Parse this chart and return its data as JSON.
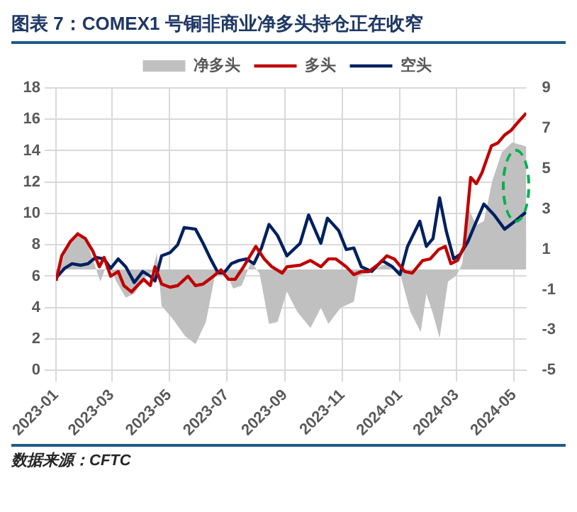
{
  "chart_data": {
    "type": "line",
    "title": "图表 7：COMEX1 号铜非商业净多头持仓正在收窄",
    "annotations": [
      "数据来源：CFTC"
    ],
    "xlim": [
      "2023-01-01",
      "2024-05-14"
    ],
    "xticks": [
      "2023-01",
      "2023-03",
      "2023-05",
      "2023-07",
      "2023-09",
      "2023-11",
      "2024-01",
      "2024-03",
      "2024-05"
    ],
    "ylim": [
      0,
      18
    ],
    "yticks": [
      0,
      2,
      4,
      6,
      8,
      10,
      12,
      14,
      16,
      18
    ],
    "y2lim": [
      -5,
      9
    ],
    "y2ticks": [
      -5,
      -3,
      -1,
      1,
      3,
      5,
      7,
      9
    ],
    "grid": true,
    "legend": "top",
    "marker": "none",
    "line_style": "solid",
    "series": [
      {
        "name": "净多头",
        "type": "area",
        "axis": "y2",
        "color": "#c0c0c0",
        "x": [
          "2023-01-01",
          "2023-01-13",
          "2023-01-24",
          "2023-02-04",
          "2023-02-17",
          "2023-02-25",
          "2023-03-06",
          "2023-03-16",
          "2023-03-25",
          "2023-04-04",
          "2023-04-13",
          "2023-04-18",
          "2023-04-23",
          "2023-05-04",
          "2023-05-18",
          "2023-05-29",
          "2023-06-09",
          "2023-06-19",
          "2023-06-30",
          "2023-07-08",
          "2023-07-17",
          "2023-07-27",
          "2023-08-05",
          "2023-08-15",
          "2023-08-24",
          "2023-09-03",
          "2023-09-14",
          "2023-09-28",
          "2023-10-09",
          "2023-10-17",
          "2023-10-30",
          "2023-11-13",
          "2023-11-18",
          "2023-11-29",
          "2023-12-13",
          "2023-12-21",
          "2024-01-01",
          "2024-01-12",
          "2024-01-23",
          "2024-01-29",
          "2024-02-05",
          "2024-02-12",
          "2024-02-21",
          "2024-03-01",
          "2024-03-07",
          "2024-03-14",
          "2024-03-22",
          "2024-03-30",
          "2024-04-08",
          "2024-04-18",
          "2024-04-29",
          "2024-05-14"
        ],
        "values": [
          -0.45,
          1.2,
          1.9,
          1.2,
          -0.6,
          0.4,
          -0.6,
          -1.4,
          -1.2,
          -0.45,
          -0.1,
          0.8,
          -1.8,
          -2.4,
          -3.3,
          -3.7,
          -2.6,
          -0.2,
          -0.1,
          -0.95,
          -0.8,
          0.4,
          -0.2,
          -2.7,
          -2.6,
          -1.1,
          -2.1,
          -2.9,
          -1.9,
          -2.7,
          -1.9,
          -1.6,
          -0.3,
          -0.2,
          0.2,
          0.3,
          -0.2,
          -2.1,
          -3.1,
          -1.2,
          -2.2,
          -3.4,
          -0.6,
          -0.3,
          0.3,
          3.0,
          2.2,
          2.4,
          4.4,
          5.8,
          6.3,
          6.1
        ]
      },
      {
        "name": "多头",
        "axis": "y",
        "color": "#c00000",
        "x": [
          "2023-01-01",
          "2023-01-07",
          "2023-01-16",
          "2023-01-24",
          "2023-02-01",
          "2023-02-09",
          "2023-02-16",
          "2023-02-21",
          "2023-02-28",
          "2023-03-08",
          "2023-03-14",
          "2023-03-22",
          "2023-03-30",
          "2023-04-04",
          "2023-04-11",
          "2023-04-16",
          "2023-04-23",
          "2023-05-02",
          "2023-05-10",
          "2023-05-21",
          "2023-05-29",
          "2023-06-06",
          "2023-06-17",
          "2023-06-25",
          "2023-07-03",
          "2023-07-10",
          "2023-07-19",
          "2023-08-01",
          "2023-08-10",
          "2023-08-18",
          "2023-08-29",
          "2023-09-03",
          "2023-09-17",
          "2023-09-28",
          "2023-10-09",
          "2023-10-17",
          "2023-10-25",
          "2023-11-05",
          "2023-11-13",
          "2023-11-21",
          "2023-11-29",
          "2023-12-10",
          "2023-12-18",
          "2023-12-26",
          "2024-01-06",
          "2024-01-14",
          "2024-01-25",
          "2024-02-02",
          "2024-02-11",
          "2024-02-18",
          "2024-02-24",
          "2024-03-02",
          "2024-03-09",
          "2024-03-16",
          "2024-03-22",
          "2024-03-28",
          "2024-04-07",
          "2024-04-14",
          "2024-04-21",
          "2024-04-28",
          "2024-05-05",
          "2024-05-14"
        ],
        "values": [
          5.7,
          7.3,
          8.2,
          8.7,
          8.4,
          7.6,
          6.6,
          7.2,
          6.0,
          6.3,
          5.4,
          5.0,
          5.5,
          5.8,
          5.4,
          6.6,
          5.5,
          5.3,
          5.4,
          6.0,
          5.4,
          5.5,
          6.0,
          6.4,
          5.8,
          5.8,
          6.6,
          7.9,
          7.1,
          6.6,
          6.2,
          6.6,
          6.7,
          7.0,
          6.6,
          7.1,
          7.1,
          6.6,
          6.1,
          6.3,
          6.3,
          6.8,
          7.3,
          7.1,
          6.3,
          6.2,
          7.0,
          7.1,
          7.7,
          7.9,
          6.8,
          7.0,
          7.9,
          12.3,
          11.9,
          12.6,
          14.3,
          14.5,
          15.0,
          15.3,
          15.8,
          16.4
        ]
      },
      {
        "name": "空头",
        "axis": "y",
        "color": "#002060",
        "x": [
          "2023-01-01",
          "2023-01-10",
          "2023-01-18",
          "2023-01-27",
          "2023-02-04",
          "2023-02-12",
          "2023-02-21",
          "2023-02-28",
          "2023-03-08",
          "2023-03-16",
          "2023-03-25",
          "2023-04-03",
          "2023-04-11",
          "2023-04-16",
          "2023-04-23",
          "2023-05-02",
          "2023-05-10",
          "2023-05-17",
          "2023-05-29",
          "2023-06-06",
          "2023-06-14",
          "2023-06-22",
          "2023-06-28",
          "2023-07-06",
          "2023-07-14",
          "2023-07-22",
          "2023-07-30",
          "2023-08-07",
          "2023-08-15",
          "2023-08-24",
          "2023-09-03",
          "2023-09-17",
          "2023-09-26",
          "2023-10-09",
          "2023-10-16",
          "2023-10-28",
          "2023-11-05",
          "2023-11-13",
          "2023-11-21",
          "2023-12-02",
          "2023-12-13",
          "2023-12-24",
          "2024-01-01",
          "2024-01-09",
          "2024-01-22",
          "2024-01-29",
          "2024-02-05",
          "2024-02-12",
          "2024-02-19",
          "2024-02-27",
          "2024-03-05",
          "2024-03-13",
          "2024-03-20",
          "2024-03-30",
          "2024-04-10",
          "2024-04-21",
          "2024-05-02",
          "2024-05-14"
        ],
        "values": [
          5.9,
          6.5,
          6.8,
          6.7,
          6.8,
          7.2,
          7.1,
          6.5,
          7.1,
          6.6,
          5.6,
          6.3,
          6.0,
          5.7,
          7.3,
          7.5,
          8.0,
          9.1,
          9.0,
          8.1,
          7.1,
          6.2,
          6.2,
          6.8,
          7.0,
          7.1,
          6.8,
          7.8,
          9.3,
          8.6,
          7.3,
          8.1,
          9.9,
          8.1,
          9.7,
          8.9,
          7.7,
          7.8,
          6.6,
          6.3,
          7.0,
          6.6,
          6.1,
          7.9,
          9.5,
          7.9,
          8.4,
          11.0,
          8.9,
          7.1,
          7.4,
          8.2,
          9.2,
          10.6,
          9.9,
          9.0,
          9.5,
          10.1
        ]
      }
    ]
  }
}
